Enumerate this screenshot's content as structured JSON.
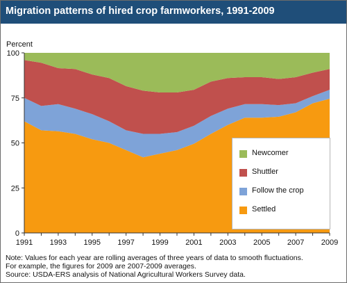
{
  "chart_data": {
    "type": "area",
    "stacked": true,
    "title": "Migration patterns of hired crop farmworkers, 1991-2009",
    "ylabel": "Percent",
    "xlabel": "",
    "ylim": [
      0,
      100
    ],
    "xlim": [
      1991,
      2009
    ],
    "y_ticks": [
      "0",
      "25",
      "50",
      "75",
      "100"
    ],
    "y_tick_values": [
      0,
      25,
      50,
      75,
      100
    ],
    "x_ticks": [
      "1991",
      "1993",
      "1995",
      "1997",
      "1999",
      "2001",
      "2003",
      "2005",
      "2007",
      "2009"
    ],
    "x_tick_values": [
      1991,
      1993,
      1995,
      1997,
      1999,
      2001,
      2003,
      2005,
      2007,
      2009
    ],
    "grid": false,
    "legend_position": "bottom-right",
    "x": [
      1991,
      1992,
      1993,
      1994,
      1995,
      1996,
      1997,
      1998,
      1999,
      2000,
      2001,
      2002,
      2003,
      2004,
      2005,
      2006,
      2007,
      2008,
      2009
    ],
    "series": [
      {
        "name": "Settled",
        "color": "#f79a10",
        "values": [
          62,
          57,
          56.5,
          55,
          52,
          50,
          46,
          42,
          44,
          46,
          49.5,
          55,
          60,
          64,
          64,
          64.5,
          67,
          72,
          74.5
        ]
      },
      {
        "name": "Follow the crop",
        "color": "#7ea3d8",
        "values": [
          13,
          13.5,
          15,
          14,
          14,
          12,
          11,
          13,
          11,
          10,
          10,
          10,
          9,
          7.5,
          7.5,
          6.5,
          5,
          4,
          5
        ]
      },
      {
        "name": "Shuttler",
        "color": "#c0504d",
        "values": [
          21,
          24,
          20,
          22,
          22,
          24,
          24.5,
          24,
          23,
          22,
          20,
          19,
          17,
          15,
          15,
          14.5,
          14.5,
          13,
          11.5
        ]
      },
      {
        "name": "Newcomer",
        "color": "#9bbb59",
        "values": [
          4,
          5.5,
          8.5,
          9,
          12,
          14,
          18.5,
          21,
          22,
          22,
          20.5,
          16,
          14,
          13.5,
          13.5,
          14.5,
          13.5,
          11,
          9
        ]
      }
    ],
    "legend_order": [
      "Newcomer",
      "Shuttler",
      "Follow the crop",
      "Settled"
    ]
  },
  "notes": [
    "Note: Values for each year are rolling averages of three years of data to smooth fluctuations.",
    "For example, the figures for 2009 are 2007-2009 averages.",
    "Source: USDA-ERS analysis of National Agricultural Workers Survey data."
  ]
}
